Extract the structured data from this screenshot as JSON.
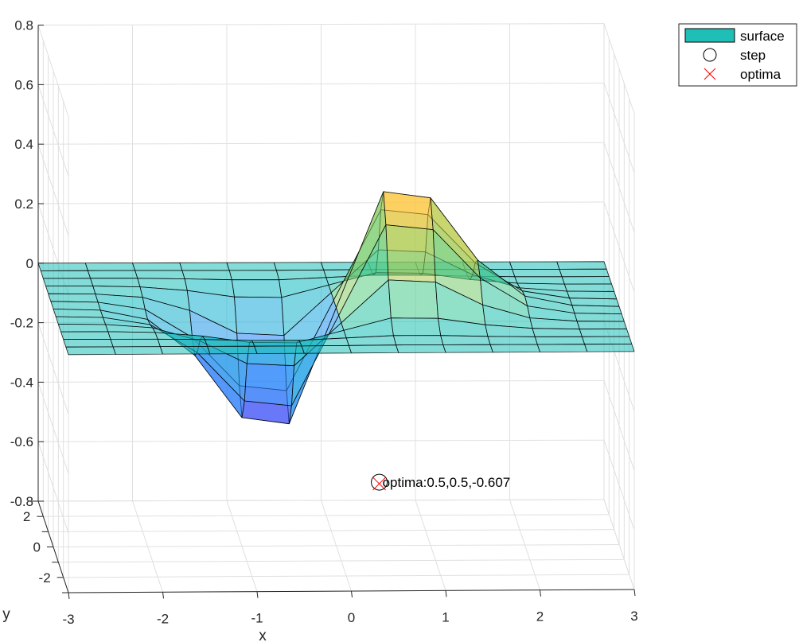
{
  "chart_data": {
    "type": "surface",
    "title": "",
    "xlabel": "x",
    "ylabel": "y",
    "zlabel": "",
    "xlim": [
      -3,
      3
    ],
    "ylim": [
      -3,
      3
    ],
    "zlim": [
      -0.8,
      0.8
    ],
    "x_ticks": [
      "-3",
      "-2",
      "-1",
      "0",
      "1",
      "2",
      "3"
    ],
    "y_ticks": [
      "-2",
      "0",
      "2"
    ],
    "z_ticks": [
      "-0.8",
      "-0.6",
      "-0.4",
      "-0.2",
      "0",
      "0.2",
      "0.4",
      "0.6",
      "0.8"
    ],
    "grid": true,
    "legend": {
      "placement": "top-right",
      "entries": [
        {
          "label": "surface",
          "marker": "patch",
          "color": "#1fbfb8"
        },
        {
          "label": "step",
          "marker": "circle",
          "color": "#000000"
        },
        {
          "label": "optima",
          "marker": "cross",
          "color": "#ff0000"
        }
      ]
    },
    "surface": {
      "function": "x*exp(-(x^2+y^2))",
      "grid_values": [
        -3,
        -2.5,
        -2,
        -1.5,
        -1,
        -0.5,
        0,
        0.5,
        1,
        1.5,
        2,
        2.5,
        3
      ],
      "face_alpha": 0.55,
      "colormap": "parula"
    },
    "step": {
      "x": 0.5,
      "y": 0.5,
      "z": -0.607
    },
    "optima": {
      "x": 0.5,
      "y": 0.5,
      "z": -0.607
    },
    "annotation": "optima:0.5,0.5,-0.607"
  }
}
